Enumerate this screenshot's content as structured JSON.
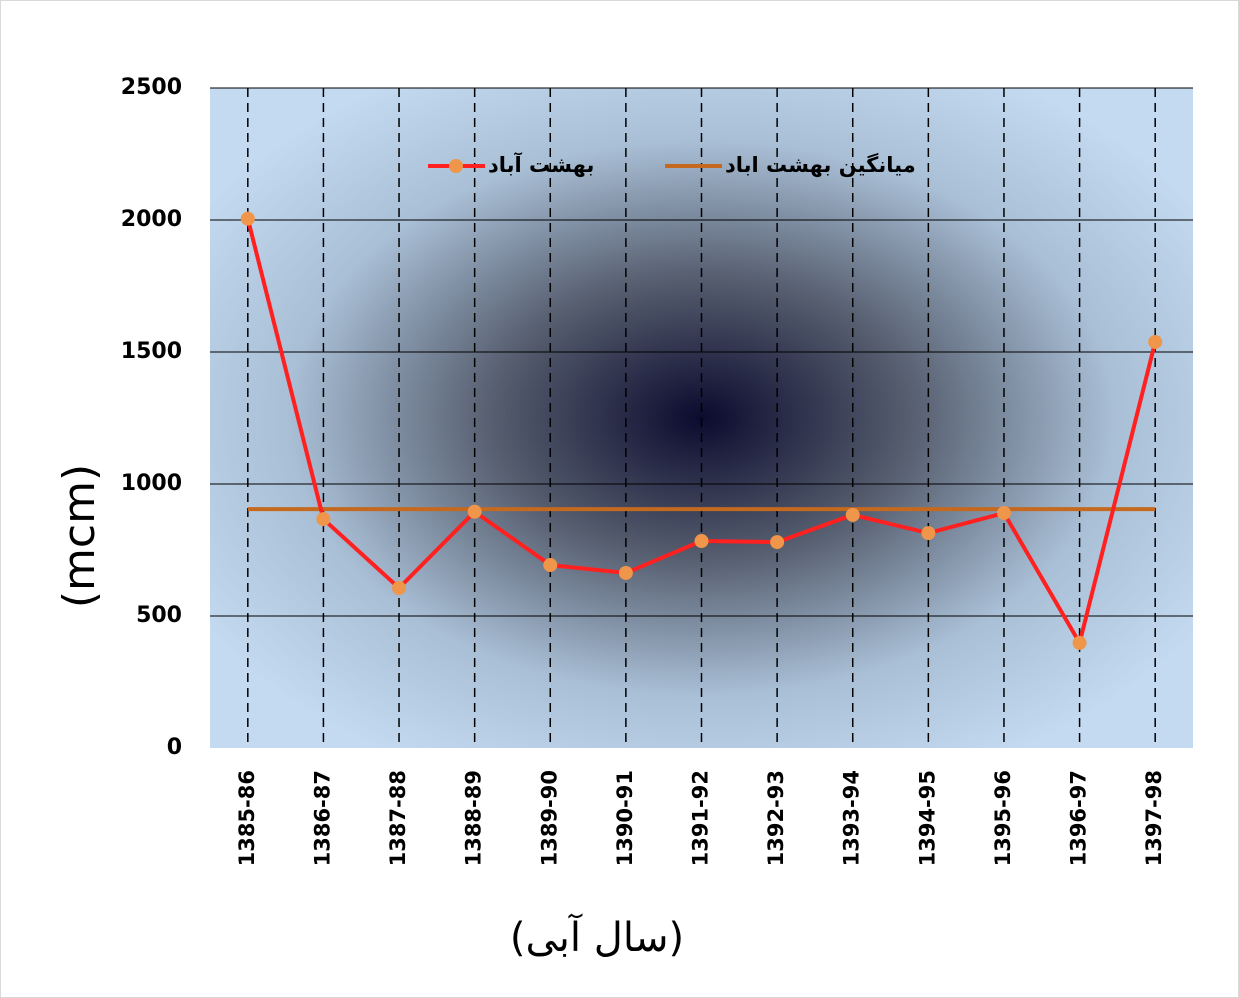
{
  "chart_data": {
    "type": "line",
    "categories": [
      "1385-86",
      "1386-87",
      "1387-88",
      "1388-89",
      "1389-90",
      "1390-91",
      "1391-92",
      "1392-93",
      "1393-94",
      "1394-95",
      "1395-96",
      "1396-97",
      "1397-98"
    ],
    "series": [
      {
        "name": "بهشت آباد",
        "color": "#ff2020",
        "marker_color": "#f0964a",
        "values": [
          2005,
          867,
          606,
          895,
          693,
          663,
          784,
          780,
          883,
          814,
          890,
          398,
          1538
        ]
      },
      {
        "name": "میانگین بهشت اباد",
        "color": "#c5691f",
        "values": [
          905,
          905,
          905,
          905,
          905,
          905,
          905,
          905,
          905,
          905,
          905,
          905,
          905
        ]
      }
    ],
    "ylim": [
      0,
      2500
    ],
    "yticks": [
      0,
      500,
      1000,
      1500,
      2000,
      2500
    ],
    "ylabel": "(mcm)",
    "xlabel": "(سال آبی)",
    "grid": true,
    "legend": "top"
  }
}
